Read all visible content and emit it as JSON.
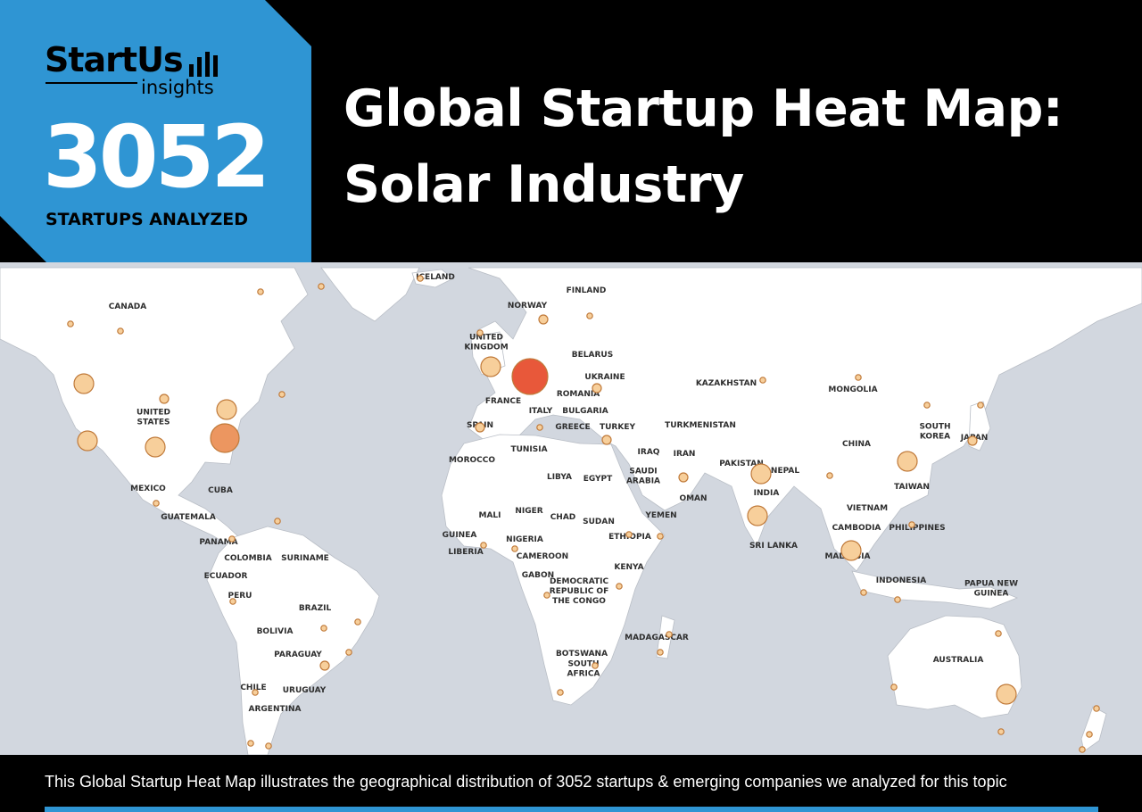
{
  "brand": {
    "name": "StartUs",
    "sub": "insights"
  },
  "stats": {
    "number": "3052",
    "caption": "STARTUPS ANALYZED"
  },
  "title": {
    "line1": "Global Startup Heat Map:",
    "line2": "Solar Industry"
  },
  "footer": {
    "text": "This Global Startup Heat Map illustrates the geographical distribution of 3052 startups & emerging companies we analyzed for this topic"
  },
  "colors": {
    "accent_blue": "#2f95d3",
    "header": "#000000",
    "ocean": "#d2d7df",
    "land": "#ffffff",
    "bubble_high": "#e8583a",
    "bubble_mid": "#ec9660",
    "bubble_low": "#f7cf9b"
  },
  "map": {
    "country_labels": [
      "CANADA",
      "UNITED STATES",
      "MEXICO",
      "CUBA",
      "GUATEMALA",
      "PANAMA",
      "COLOMBIA",
      "SURINAME",
      "ECUADOR",
      "PERU",
      "BRAZIL",
      "BOLIVIA",
      "PARAGUAY",
      "CHILE",
      "URUGUAY",
      "ARGENTINA",
      "ICELAND",
      "NORWAY",
      "FINLAND",
      "UNITED KINGDOM",
      "BELARUS",
      "UKRAINE",
      "ROMANIA",
      "FRANCE",
      "ITALY",
      "BULGARIA",
      "SPAIN",
      "GREECE",
      "TURKEY",
      "MOROCCO",
      "TUNISIA",
      "LIBYA",
      "EGYPT",
      "MALI",
      "NIGER",
      "CHAD",
      "SUDAN",
      "GUINEA",
      "LIBERIA",
      "NIGERIA",
      "CAMEROON",
      "GABON",
      "ETHIOPIA",
      "KENYA",
      "DEMOCRATIC REPUBLIC OF THE CONGO",
      "MADAGASCAR",
      "BOTSWANA",
      "SOUTH AFRICA",
      "IRAQ",
      "SAUDI ARABIA",
      "IRAN",
      "YEMEN",
      "OMAN",
      "KAZAKHSTAN",
      "TURKMENISTAN",
      "PAKISTAN",
      "NEPAL",
      "INDIA",
      "SRI LANKA",
      "MONGOLIA",
      "CHINA",
      "SOUTH KOREA",
      "JAPAN",
      "TAIWAN",
      "VIETNAM",
      "CAMBODIA",
      "PHILIPPINES",
      "MALAYSIA",
      "INDONESIA",
      "PAPUA NEW GUINEA",
      "AUSTRALIA"
    ],
    "startup_hotspots": [
      {
        "place": "Western Europe",
        "level": "high"
      },
      {
        "place": "United States East Coast",
        "level": "mid"
      },
      {
        "place": "United Kingdom",
        "level": "low"
      },
      {
        "place": "California",
        "level": "low"
      },
      {
        "place": "Texas",
        "level": "low"
      },
      {
        "place": "Northeast United States",
        "level": "low"
      },
      {
        "place": "India",
        "level": "low"
      },
      {
        "place": "China",
        "level": "low"
      },
      {
        "place": "Australia",
        "level": "low"
      }
    ]
  }
}
